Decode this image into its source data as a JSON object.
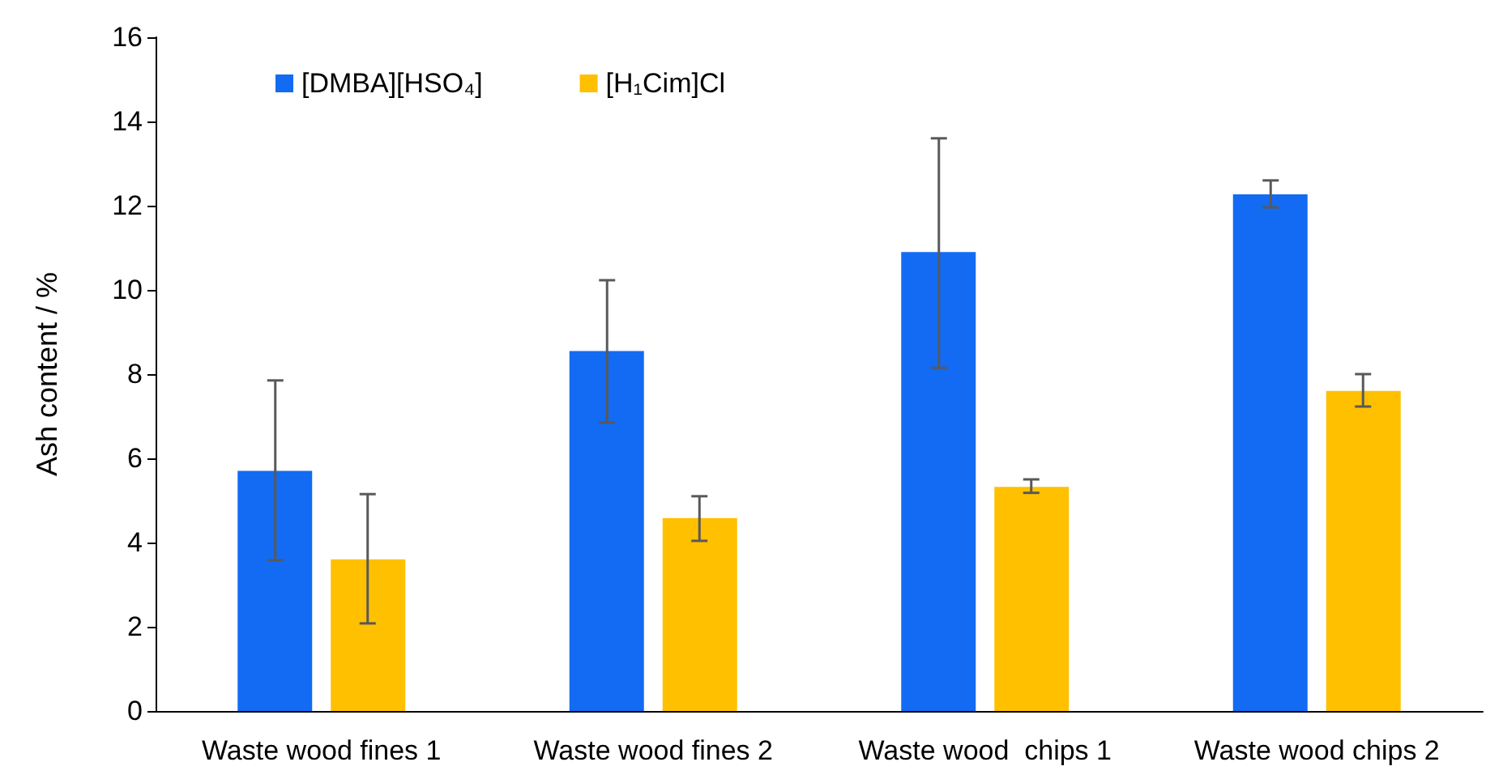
{
  "chart_data": {
    "type": "bar",
    "ylabel": "Ash content / %",
    "categories": [
      "Waste wood fines 1",
      "Waste wood fines 2",
      "Waste wood  chips 1",
      "Waste wood chips 2"
    ],
    "series": [
      {
        "name": "[DMBA][HSO₄]",
        "color": "#126bf2",
        "values": [
          5.7,
          8.55,
          10.9,
          12.27
        ],
        "errors": [
          [
            3.58,
            7.85
          ],
          [
            6.85,
            10.23
          ],
          [
            8.15,
            13.6
          ],
          [
            11.96,
            12.6
          ]
        ]
      },
      {
        "name": "[H₁Cim]Cl",
        "color": "#ffc000",
        "values": [
          3.6,
          4.58,
          5.32,
          7.6
        ],
        "errors": [
          [
            2.08,
            5.15
          ],
          [
            4.04,
            5.1
          ],
          [
            5.18,
            5.5
          ],
          [
            7.23,
            8.0
          ]
        ]
      }
    ],
    "ylim": [
      0,
      16
    ],
    "yticks": [
      0,
      2,
      4,
      6,
      8,
      10,
      12,
      14,
      16
    ],
    "grid": false,
    "legend": "top left"
  }
}
